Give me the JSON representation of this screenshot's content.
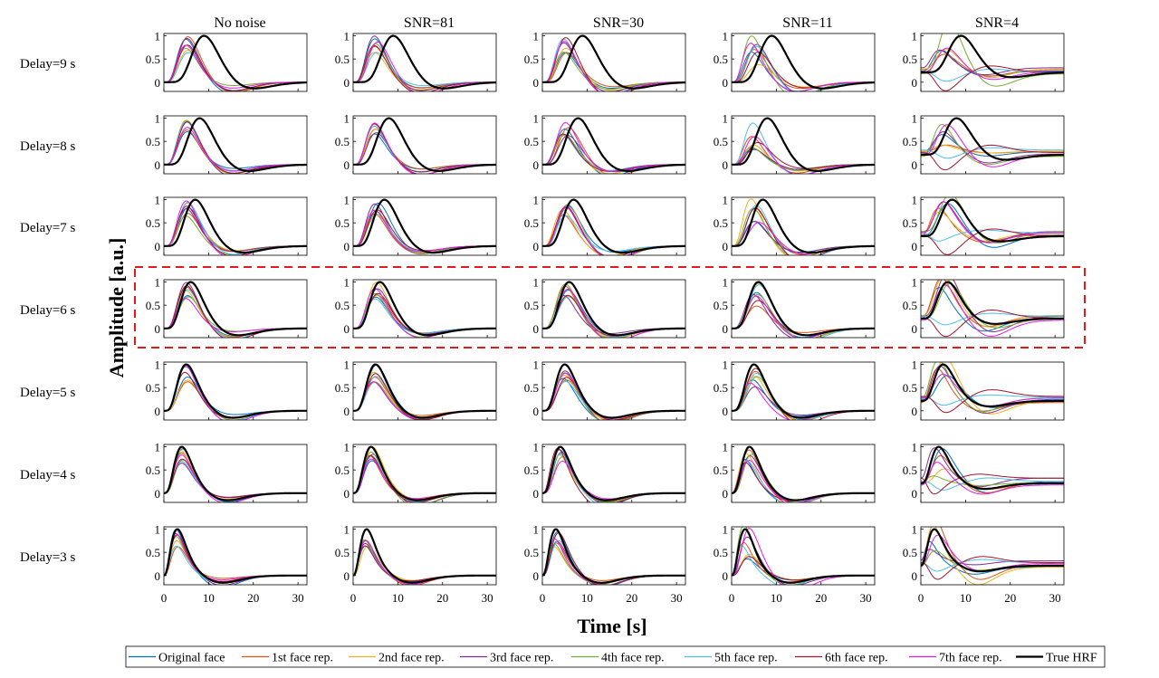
{
  "chart_data": {
    "type": "line",
    "title": "",
    "xlabel": "Time [s]",
    "ylabel": "Amplitude [a.u.]",
    "xlim": [
      0,
      32
    ],
    "ylim": [
      -0.2,
      1.05
    ],
    "x_ticks": [
      0,
      10,
      20,
      30
    ],
    "y_ticks": [
      0,
      0.5,
      1
    ],
    "x_tick_labels": [
      "0",
      "10",
      "20",
      "30"
    ],
    "y_tick_labels": [
      "0",
      "0.5",
      "1"
    ],
    "columns": [
      "No noise",
      "SNR=81",
      "SNR=30",
      "SNR=11",
      "SNR=4"
    ],
    "rows": [
      "Delay=9 s",
      "Delay=8 s",
      "Delay=7 s",
      "Delay=6 s",
      "Delay=5 s",
      "Delay=4 s",
      "Delay=3 s"
    ],
    "row_delays_s": [
      9,
      8,
      7,
      6,
      5,
      4,
      3
    ],
    "highlight": {
      "row": "Delay=6 s",
      "style": "red dashed box"
    },
    "series": [
      {
        "name": "Original face",
        "color": "#0072BD"
      },
      {
        "name": "1st face rep.",
        "color": "#D95319"
      },
      {
        "name": "2nd face rep.",
        "color": "#EDB120"
      },
      {
        "name": "3rd face rep.",
        "color": "#7E2F8E"
      },
      {
        "name": "4th face rep.",
        "color": "#77AC30"
      },
      {
        "name": "5th face rep.",
        "color": "#4DBEEE"
      },
      {
        "name": "6th face rep.",
        "color": "#A2142F"
      },
      {
        "name": "7th face rep.",
        "color": "#E619E6"
      },
      {
        "name": "True HRF",
        "color": "#000000"
      }
    ]
  }
}
